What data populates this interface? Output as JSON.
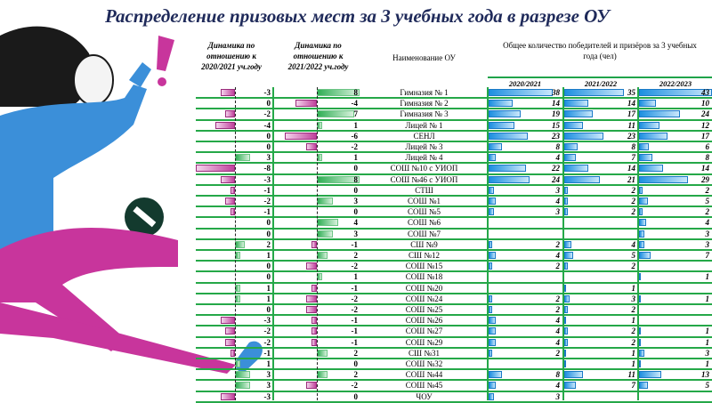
{
  "title": "Распределение призовых мест за 3 учебных года в разрезе ОУ",
  "headers": {
    "dyn1": [
      "Динамика по",
      "отношению к",
      "2020/2021 уч.году"
    ],
    "dyn2": [
      "Динамика по",
      "отношению к",
      "2021/2022 уч.году"
    ],
    "name": "Наименование ОУ",
    "total": [
      "Общее количество победителей и призёров за 3 учебных",
      "года (чел)"
    ],
    "years": [
      "2020/2021",
      "2021/2022",
      "2022/2023"
    ]
  },
  "colors": {
    "negative": "#c0409c",
    "positive": "#2fae54",
    "count": "#1d8fe0",
    "grid": "#25a848",
    "title": "#1f2a5a"
  },
  "rows": [
    {
      "name": "Гимназия № 1",
      "d1": -3,
      "d2": 8,
      "y": [
        38,
        35,
        43
      ]
    },
    {
      "name": "Гимназия № 2",
      "d1": 0,
      "d2": -4,
      "y": [
        14,
        14,
        10
      ]
    },
    {
      "name": "Гимназия № 3",
      "d1": -2,
      "d2": 7,
      "y": [
        19,
        17,
        24
      ]
    },
    {
      "name": "Лицей № 1",
      "d1": -4,
      "d2": 1,
      "y": [
        15,
        11,
        12
      ]
    },
    {
      "name": "СЕНЛ",
      "d1": 0,
      "d2": -6,
      "y": [
        23,
        23,
        17
      ]
    },
    {
      "name": "Лицей  № 3",
      "d1": 0,
      "d2": -2,
      "y": [
        8,
        8,
        6
      ]
    },
    {
      "name": "Лицей № 4",
      "d1": 3,
      "d2": 1,
      "y": [
        4,
        7,
        8
      ]
    },
    {
      "name": "СОШ №10 с УИОП",
      "d1": -8,
      "d2": 0,
      "y": [
        22,
        14,
        14
      ]
    },
    {
      "name": "СОШ №46 с УИОП",
      "d1": -3,
      "d2": 8,
      "y": [
        24,
        21,
        29
      ]
    },
    {
      "name": "СТШ",
      "d1": -1,
      "d2": 0,
      "y": [
        3,
        2,
        2
      ]
    },
    {
      "name": "СОШ №1",
      "d1": -2,
      "d2": 3,
      "y": [
        4,
        2,
        5
      ]
    },
    {
      "name": "СОШ №5",
      "d1": -1,
      "d2": 0,
      "y": [
        3,
        2,
        2
      ]
    },
    {
      "name": "СОШ №6",
      "d1": 0,
      "d2": 4,
      "y": [
        null,
        null,
        4
      ]
    },
    {
      "name": "СОШ №7",
      "d1": 0,
      "d2": 3,
      "y": [
        null,
        null,
        3
      ]
    },
    {
      "name": "СШ №9",
      "d1": 2,
      "d2": -1,
      "y": [
        2,
        4,
        3
      ]
    },
    {
      "name": "СШ №12",
      "d1": 1,
      "d2": 2,
      "y": [
        4,
        5,
        7
      ]
    },
    {
      "name": "СОШ №15",
      "d1": 0,
      "d2": -2,
      "y": [
        2,
        2,
        null
      ]
    },
    {
      "name": "СОШ №18",
      "d1": 0,
      "d2": 1,
      "y": [
        null,
        null,
        1
      ]
    },
    {
      "name": "СОШ №20",
      "d1": 1,
      "d2": -1,
      "y": [
        null,
        1,
        null
      ]
    },
    {
      "name": "СОШ №24",
      "d1": 1,
      "d2": -2,
      "y": [
        2,
        3,
        1
      ]
    },
    {
      "name": "СОШ №25",
      "d1": 0,
      "d2": -2,
      "y": [
        2,
        2,
        null
      ]
    },
    {
      "name": "СОШ №26",
      "d1": -3,
      "d2": -1,
      "y": [
        4,
        1,
        null
      ]
    },
    {
      "name": "СОШ №27",
      "d1": -2,
      "d2": -1,
      "y": [
        4,
        2,
        1
      ]
    },
    {
      "name": "СОШ №29",
      "d1": -2,
      "d2": -1,
      "y": [
        4,
        2,
        1
      ]
    },
    {
      "name": "СШ №31",
      "d1": -1,
      "d2": 2,
      "y": [
        2,
        1,
        3
      ]
    },
    {
      "name": "СОШ №32",
      "d1": 1,
      "d2": 0,
      "y": [
        null,
        1,
        1
      ]
    },
    {
      "name": "СОШ №44",
      "d1": 3,
      "d2": 2,
      "y": [
        8,
        11,
        13
      ]
    },
    {
      "name": "СОШ №45",
      "d1": 3,
      "d2": -2,
      "y": [
        4,
        7,
        5
      ]
    },
    {
      "name": "ЧОУ",
      "d1": -3,
      "d2": 0,
      "y": [
        3,
        null,
        null
      ]
    }
  ]
}
